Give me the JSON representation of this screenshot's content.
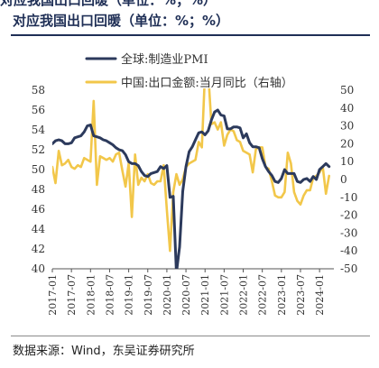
{
  "header": {
    "title": "对应我国出口回暖（单位：%；%）"
  },
  "footer": {
    "source": "数据来源：Wind，东吴证券研究所"
  },
  "chart_data": {
    "type": "line",
    "title": "",
    "xlabel": "",
    "ylabel_left": "",
    "ylabel_right": "",
    "ylim_left": [
      40,
      58
    ],
    "yticks_left": [
      40,
      42,
      44,
      46,
      48,
      50,
      52,
      54,
      56,
      58
    ],
    "ylim_right": [
      -50,
      50
    ],
    "yticks_right": [
      -50,
      -40,
      -30,
      -20,
      -10,
      0,
      10,
      20,
      30,
      40,
      50
    ],
    "xticks": [
      "2017-01",
      "2017-07",
      "2018-01",
      "2018-07",
      "2019-01",
      "2019-07",
      "2020-01",
      "2020-07",
      "2021-01",
      "2021-07",
      "2022-01",
      "2022-07",
      "2023-01",
      "2023-07",
      "2024-01"
    ],
    "grid": false,
    "legend_position": "top-left",
    "colors": {
      "pmi": "#2c3a5c",
      "export": "#f2c74a"
    },
    "series": [
      {
        "name": "全球:制造业PMI",
        "axis": "left",
        "x": [
          "2017-01",
          "2017-02",
          "2017-03",
          "2017-04",
          "2017-05",
          "2017-06",
          "2017-07",
          "2017-08",
          "2017-09",
          "2017-10",
          "2017-11",
          "2017-12",
          "2018-01",
          "2018-02",
          "2018-03",
          "2018-04",
          "2018-05",
          "2018-06",
          "2018-07",
          "2018-08",
          "2018-09",
          "2018-10",
          "2018-11",
          "2018-12",
          "2019-01",
          "2019-02",
          "2019-03",
          "2019-04",
          "2019-05",
          "2019-06",
          "2019-07",
          "2019-08",
          "2019-09",
          "2019-10",
          "2019-11",
          "2019-12",
          "2020-01",
          "2020-02",
          "2020-03",
          "2020-04",
          "2020-05",
          "2020-06",
          "2020-07",
          "2020-08",
          "2020-09",
          "2020-10",
          "2020-11",
          "2020-12",
          "2021-01",
          "2021-02",
          "2021-03",
          "2021-04",
          "2021-05",
          "2021-06",
          "2021-07",
          "2021-08",
          "2021-09",
          "2021-10",
          "2021-11",
          "2021-12",
          "2022-01",
          "2022-02",
          "2022-03",
          "2022-04",
          "2022-05",
          "2022-06",
          "2022-07",
          "2022-08",
          "2022-09",
          "2022-10",
          "2022-11",
          "2022-12",
          "2023-01",
          "2023-02",
          "2023-03",
          "2023-04",
          "2023-05",
          "2023-06",
          "2023-07",
          "2023-08",
          "2023-09",
          "2023-10",
          "2023-11",
          "2023-12",
          "2024-01",
          "2024-02",
          "2024-03",
          "2024-04"
        ],
        "values": [
          52.6,
          52.9,
          53.0,
          52.9,
          52.6,
          52.6,
          52.7,
          53.2,
          53.3,
          53.4,
          53.8,
          54.4,
          54.5,
          53.4,
          53.3,
          53.2,
          53.0,
          52.9,
          52.7,
          52.5,
          52.2,
          52.0,
          51.9,
          51.5,
          50.8,
          50.6,
          50.6,
          50.4,
          49.8,
          49.4,
          49.3,
          49.6,
          49.7,
          49.8,
          50.3,
          50.1,
          50.4,
          47.2,
          47.3,
          39.6,
          42.2,
          47.8,
          50.3,
          51.8,
          52.3,
          53.0,
          53.7,
          53.8,
          53.5,
          53.9,
          55.0,
          55.8,
          56.0,
          55.5,
          55.4,
          54.1,
          54.1,
          54.3,
          54.3,
          54.2,
          53.2,
          53.6,
          52.7,
          52.3,
          52.3,
          52.2,
          51.1,
          50.3,
          49.8,
          49.4,
          48.8,
          48.7,
          49.1,
          50.0,
          49.6,
          49.6,
          49.6,
          48.8,
          48.7,
          49.0,
          49.1,
          48.8,
          49.3,
          49.0,
          50.0,
          50.3,
          50.6,
          50.3
        ]
      },
      {
        "name": "中国:出口金额:当月同比（右轴）",
        "axis": "right",
        "x": [
          "2017-01",
          "2017-02",
          "2017-03",
          "2017-04",
          "2017-05",
          "2017-06",
          "2017-07",
          "2017-08",
          "2017-09",
          "2017-10",
          "2017-11",
          "2017-12",
          "2018-01",
          "2018-02",
          "2018-03",
          "2018-04",
          "2018-05",
          "2018-06",
          "2018-07",
          "2018-08",
          "2018-09",
          "2018-10",
          "2018-11",
          "2018-12",
          "2019-01",
          "2019-02",
          "2019-03",
          "2019-04",
          "2019-05",
          "2019-06",
          "2019-07",
          "2019-08",
          "2019-09",
          "2019-10",
          "2019-11",
          "2019-12",
          "2020-01",
          "2020-02",
          "2020-03",
          "2020-04",
          "2020-05",
          "2020-06",
          "2020-07",
          "2020-08",
          "2020-09",
          "2020-10",
          "2020-11",
          "2020-12",
          "2021-01",
          "2021-02",
          "2021-03",
          "2021-04",
          "2021-05",
          "2021-06",
          "2021-07",
          "2021-08",
          "2021-09",
          "2021-10",
          "2021-11",
          "2021-12",
          "2022-01",
          "2022-02",
          "2022-03",
          "2022-04",
          "2022-05",
          "2022-06",
          "2022-07",
          "2022-08",
          "2022-09",
          "2022-10",
          "2022-11",
          "2022-12",
          "2023-01",
          "2023-02",
          "2023-03",
          "2023-04",
          "2023-05",
          "2023-06",
          "2023-07",
          "2023-08",
          "2023-09",
          "2023-10",
          "2023-11",
          "2023-12",
          "2024-01",
          "2024-02",
          "2024-03",
          "2024-04"
        ],
        "values": [
          7,
          -2,
          16,
          8,
          9,
          11,
          7,
          6,
          8,
          7,
          12,
          11,
          10,
          44,
          -3,
          13,
          12,
          11,
          12,
          10,
          14,
          15,
          5,
          -4,
          9,
          -21,
          14,
          -3,
          1,
          -1,
          3,
          -2,
          -3,
          -1,
          -1,
          8,
          -17,
          -40,
          -7,
          3,
          -3,
          0,
          7,
          9,
          10,
          11,
          21,
          18,
          60,
          60,
          31,
          32,
          28,
          32,
          19,
          25,
          28,
          27,
          22,
          21,
          16,
          15,
          14,
          4,
          17,
          18,
          18,
          7,
          6,
          -1,
          -9,
          -10,
          -10,
          -7,
          15,
          9,
          -7,
          -12,
          -14,
          -9,
          -6,
          -6,
          1,
          2,
          4,
          7,
          -8,
          2
        ]
      }
    ]
  }
}
